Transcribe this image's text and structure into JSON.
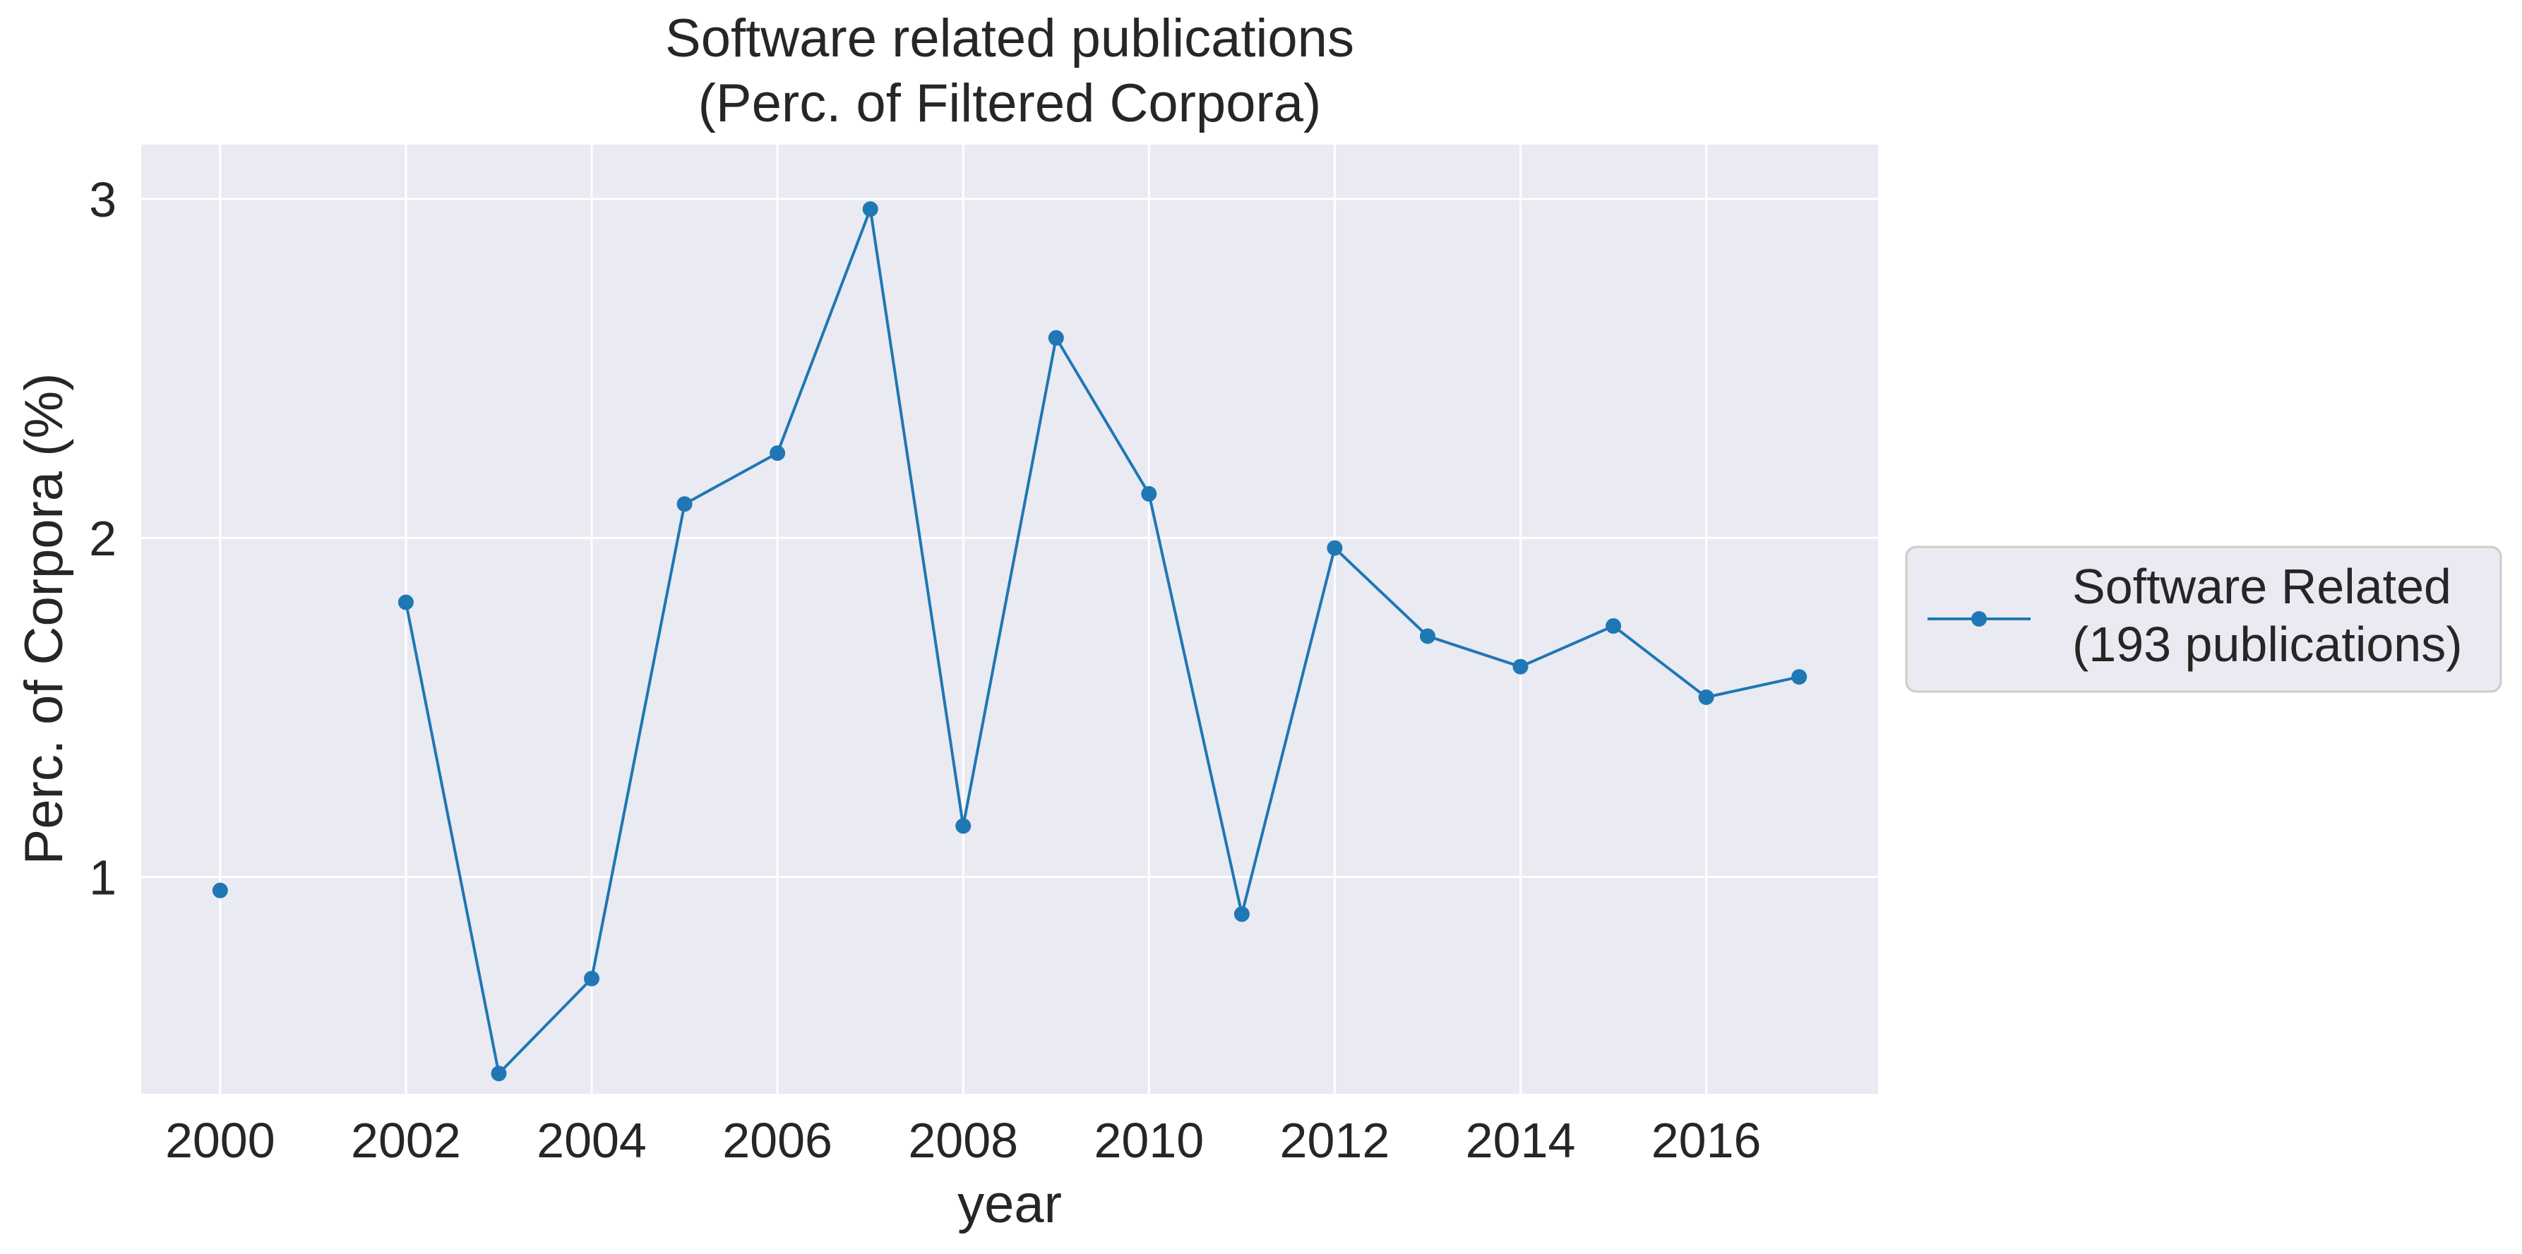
{
  "chart_data": {
    "type": "line",
    "title": "Software related publications",
    "subtitle": "(Perc. of Filtered Corpora)",
    "xlabel": "year",
    "ylabel": "Perc. of Corpora (%)",
    "xlim": [
      1999.15,
      2017.85
    ],
    "ylim": [
      0.36,
      3.16
    ],
    "xticks": [
      2000,
      2002,
      2004,
      2006,
      2008,
      2010,
      2012,
      2014,
      2016
    ],
    "yticks": [
      1,
      2,
      3
    ],
    "grid": true,
    "legend_placement": "center-right outside",
    "series": [
      {
        "name": "Software Related",
        "name_line2": "(193 publications)",
        "color": "#1f77b4",
        "marker": "circle",
        "points": [
          {
            "x": 2000,
            "y": 0.96
          },
          {
            "x": 2001,
            "y": null
          },
          {
            "x": 2002,
            "y": 1.81
          },
          {
            "x": 2003,
            "y": 0.42
          },
          {
            "x": 2004,
            "y": 0.7
          },
          {
            "x": 2005,
            "y": 2.1
          },
          {
            "x": 2006,
            "y": 2.25
          },
          {
            "x": 2007,
            "y": 2.97
          },
          {
            "x": 2008,
            "y": 1.15
          },
          {
            "x": 2009,
            "y": 2.59
          },
          {
            "x": 2010,
            "y": 2.13
          },
          {
            "x": 2011,
            "y": 0.89
          },
          {
            "x": 2012,
            "y": 1.97
          },
          {
            "x": 2013,
            "y": 1.71
          },
          {
            "x": 2014,
            "y": 1.62
          },
          {
            "x": 2015,
            "y": 1.74
          },
          {
            "x": 2016,
            "y": 1.53
          },
          {
            "x": 2017,
            "y": 1.59
          }
        ]
      }
    ]
  },
  "colors": {
    "plot_background": "#eaeaf2",
    "grid": "#ffffff",
    "text": "#262626",
    "legend_border": "#cccccc"
  }
}
